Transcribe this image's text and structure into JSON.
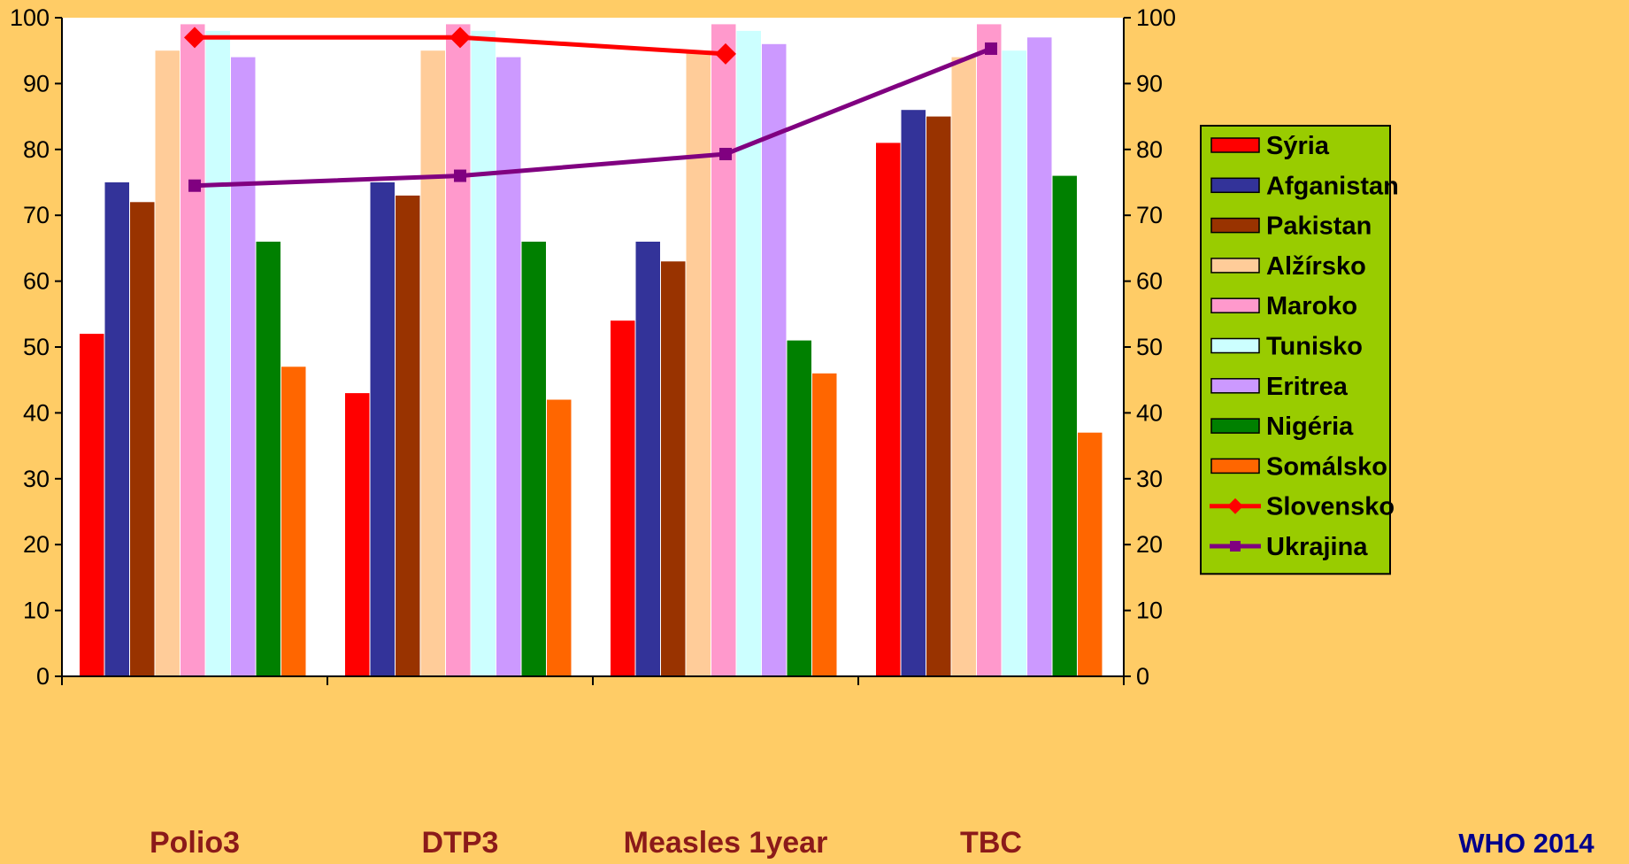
{
  "chart_data": {
    "type": "bar",
    "title": "",
    "categories": [
      "Polio3",
      "DTP3",
      "Measles 1year",
      "TBC"
    ],
    "ylim": [
      0,
      100
    ],
    "y_ticks": [
      0,
      10,
      20,
      30,
      40,
      50,
      60,
      70,
      80,
      90,
      100
    ],
    "grid": false,
    "legend_position": "right",
    "series": [
      {
        "name": "Sýria",
        "type": "bar",
        "color": "#FF0000",
        "values": [
          52,
          43,
          54,
          81
        ]
      },
      {
        "name": "Afganistan",
        "type": "bar",
        "color": "#333399",
        "values": [
          75,
          75,
          66,
          86
        ]
      },
      {
        "name": "Pakistan",
        "type": "bar",
        "color": "#993300",
        "values": [
          72,
          73,
          63,
          85
        ]
      },
      {
        "name": "Alžírsko",
        "type": "bar",
        "color": "#FFCC99",
        "values": [
          95,
          95,
          95,
          94
        ]
      },
      {
        "name": "Maroko",
        "type": "bar",
        "color": "#FF99CC",
        "values": [
          99,
          99,
          99,
          99
        ]
      },
      {
        "name": "Tunisko",
        "type": "bar",
        "color": "#CCFFFF",
        "values": [
          98,
          98,
          98,
          95
        ]
      },
      {
        "name": "Eritrea",
        "type": "bar",
        "color": "#CC99FF",
        "values": [
          94,
          94,
          96,
          97
        ]
      },
      {
        "name": "Nigéria",
        "type": "bar",
        "color": "#008000",
        "values": [
          66,
          66,
          51,
          76
        ]
      },
      {
        "name": "Somálsko",
        "type": "bar",
        "color": "#FF6600",
        "values": [
          47,
          42,
          46,
          37
        ]
      },
      {
        "name": "Slovensko",
        "type": "line",
        "marker": "diamond",
        "color": "#FF0000",
        "values": [
          97,
          97,
          94.5,
          null
        ]
      },
      {
        "name": "Ukrajina",
        "type": "line",
        "marker": "square",
        "color": "#800080",
        "values": [
          74.5,
          76,
          79.3,
          95.3
        ]
      }
    ]
  },
  "source": "WHO 2014",
  "colors": {
    "background": "#FFCC66",
    "plot_area": "#FFFFFF",
    "legend_background": "#99CC00",
    "category_label": "#8B1A1A",
    "source_label": "#00008B"
  }
}
